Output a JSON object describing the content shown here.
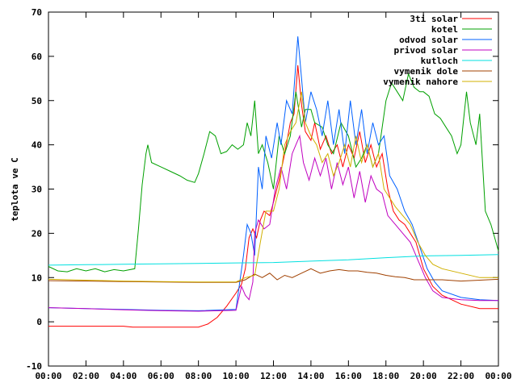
{
  "chart_data": {
    "type": "line",
    "ylabel": "teplota ve C",
    "xlim": [
      0,
      24
    ],
    "ylim": [
      -10,
      70
    ],
    "x_tick_labels": [
      "00:00",
      "02:00",
      "04:00",
      "06:00",
      "08:00",
      "10:00",
      "12:00",
      "14:00",
      "16:00",
      "18:00",
      "20:00",
      "22:00",
      "00:00"
    ],
    "y_tick_labels": [
      "-10",
      "0",
      "10",
      "20",
      "30",
      "40",
      "50",
      "60",
      "70"
    ],
    "x_tick_values": [
      0,
      2,
      4,
      6,
      8,
      10,
      12,
      14,
      16,
      18,
      20,
      22,
      24
    ],
    "y_tick_values": [
      -10,
      0,
      10,
      20,
      30,
      40,
      50,
      60,
      70
    ],
    "grid": false,
    "legend_position": "top-right",
    "series": [
      {
        "name": "3ti solar",
        "color": "#ff0000",
        "points": [
          [
            0,
            -1
          ],
          [
            2,
            -1
          ],
          [
            4,
            -1
          ],
          [
            4.5,
            -1.2
          ],
          [
            6,
            -1.2
          ],
          [
            8,
            -1.2
          ],
          [
            8.5,
            -0.5
          ],
          [
            9,
            1
          ],
          [
            9.5,
            3.5
          ],
          [
            10,
            6.5
          ],
          [
            10.3,
            8.5
          ],
          [
            10.5,
            12
          ],
          [
            10.7,
            19
          ],
          [
            10.9,
            21
          ],
          [
            11.1,
            19
          ],
          [
            11.3,
            23
          ],
          [
            11.5,
            25
          ],
          [
            11.8,
            24
          ],
          [
            12.0,
            27
          ],
          [
            12.3,
            32
          ],
          [
            12.6,
            38
          ],
          [
            12.9,
            45
          ],
          [
            13.1,
            47
          ],
          [
            13.3,
            58
          ],
          [
            13.5,
            49
          ],
          [
            13.7,
            43
          ],
          [
            14.0,
            41
          ],
          [
            14.2,
            45
          ],
          [
            14.5,
            39
          ],
          [
            14.8,
            42
          ],
          [
            15.1,
            38
          ],
          [
            15.4,
            40
          ],
          [
            15.7,
            35
          ],
          [
            16.0,
            40
          ],
          [
            16.3,
            37
          ],
          [
            16.6,
            43
          ],
          [
            16.9,
            36
          ],
          [
            17.2,
            40
          ],
          [
            17.5,
            35
          ],
          [
            17.8,
            38
          ],
          [
            18.1,
            30
          ],
          [
            18.4,
            25
          ],
          [
            18.7,
            23
          ],
          [
            19.0,
            22
          ],
          [
            19.3,
            20
          ],
          [
            19.6,
            18
          ],
          [
            20,
            12
          ],
          [
            20.5,
            8
          ],
          [
            21,
            6
          ],
          [
            22,
            4
          ],
          [
            23,
            3
          ],
          [
            24,
            3
          ]
        ]
      },
      {
        "name": "kotel",
        "color": "#00a000",
        "points": [
          [
            0,
            12.5
          ],
          [
            0.5,
            11.5
          ],
          [
            1,
            11.3
          ],
          [
            1.5,
            12
          ],
          [
            2,
            11.5
          ],
          [
            2.5,
            12
          ],
          [
            3,
            11.3
          ],
          [
            3.5,
            11.8
          ],
          [
            4,
            11.5
          ],
          [
            4.6,
            12
          ],
          [
            4.8,
            21
          ],
          [
            5.0,
            31
          ],
          [
            5.2,
            38
          ],
          [
            5.3,
            40
          ],
          [
            5.5,
            36
          ],
          [
            6.0,
            35
          ],
          [
            6.5,
            34
          ],
          [
            7.0,
            33
          ],
          [
            7.4,
            32
          ],
          [
            7.8,
            31.5
          ],
          [
            8.0,
            33.5
          ],
          [
            8.3,
            38
          ],
          [
            8.6,
            43
          ],
          [
            8.9,
            42
          ],
          [
            9.2,
            38
          ],
          [
            9.5,
            38.5
          ],
          [
            9.8,
            40
          ],
          [
            10.1,
            39
          ],
          [
            10.4,
            40
          ],
          [
            10.6,
            45
          ],
          [
            10.8,
            42
          ],
          [
            11.0,
            50
          ],
          [
            11.2,
            38
          ],
          [
            11.4,
            40
          ],
          [
            11.7,
            36
          ],
          [
            12.0,
            30
          ],
          [
            12.3,
            42
          ],
          [
            12.6,
            38
          ],
          [
            12.9,
            42
          ],
          [
            13.2,
            52
          ],
          [
            13.5,
            44
          ],
          [
            13.7,
            48
          ],
          [
            14.0,
            48
          ],
          [
            14.2,
            45
          ],
          [
            14.6,
            44
          ],
          [
            14.9,
            40
          ],
          [
            15.2,
            38
          ],
          [
            15.6,
            45
          ],
          [
            16.0,
            42
          ],
          [
            16.4,
            35
          ],
          [
            16.7,
            37
          ],
          [
            17.0,
            40
          ],
          [
            17.3,
            35
          ],
          [
            17.6,
            38
          ],
          [
            18.0,
            50
          ],
          [
            18.3,
            54
          ],
          [
            18.6,
            52
          ],
          [
            18.9,
            50
          ],
          [
            19.2,
            56
          ],
          [
            19.5,
            53
          ],
          [
            19.8,
            52
          ],
          [
            20.0,
            52
          ],
          [
            20.3,
            51
          ],
          [
            20.6,
            47
          ],
          [
            20.9,
            46
          ],
          [
            21.2,
            44
          ],
          [
            21.5,
            42
          ],
          [
            21.8,
            38
          ],
          [
            22.0,
            40
          ],
          [
            22.3,
            52
          ],
          [
            22.5,
            45
          ],
          [
            22.8,
            40
          ],
          [
            23.0,
            47
          ],
          [
            23.3,
            25
          ],
          [
            23.6,
            22
          ],
          [
            23.8,
            19
          ],
          [
            24,
            16
          ]
        ]
      },
      {
        "name": "odvod solar",
        "color": "#0060ff",
        "points": [
          [
            0,
            3.2
          ],
          [
            2,
            3
          ],
          [
            4,
            2.8
          ],
          [
            6,
            2.6
          ],
          [
            8,
            2.5
          ],
          [
            10,
            2.8
          ],
          [
            10.4,
            15
          ],
          [
            10.6,
            22
          ],
          [
            10.8,
            20
          ],
          [
            11.0,
            15
          ],
          [
            11.2,
            35
          ],
          [
            11.4,
            30
          ],
          [
            11.6,
            42
          ],
          [
            11.9,
            37
          ],
          [
            12.2,
            45
          ],
          [
            12.4,
            40
          ],
          [
            12.7,
            50
          ],
          [
            13.0,
            47
          ],
          [
            13.3,
            64.5
          ],
          [
            13.5,
            55
          ],
          [
            13.7,
            45
          ],
          [
            14.0,
            52
          ],
          [
            14.3,
            48
          ],
          [
            14.6,
            42
          ],
          [
            14.9,
            50
          ],
          [
            15.2,
            40
          ],
          [
            15.5,
            48
          ],
          [
            15.8,
            38
          ],
          [
            16.1,
            50
          ],
          [
            16.4,
            40
          ],
          [
            16.7,
            48
          ],
          [
            17.0,
            38
          ],
          [
            17.3,
            45
          ],
          [
            17.6,
            40
          ],
          [
            17.9,
            42
          ],
          [
            18.2,
            33
          ],
          [
            18.6,
            30
          ],
          [
            19.0,
            25
          ],
          [
            19.4,
            22
          ],
          [
            19.8,
            17
          ],
          [
            20.2,
            12
          ],
          [
            20.6,
            9
          ],
          [
            21,
            7
          ],
          [
            22,
            5.5
          ],
          [
            23,
            5
          ],
          [
            24,
            4.8
          ]
        ]
      },
      {
        "name": "privod solar",
        "color": "#c000c0",
        "points": [
          [
            0,
            3.2
          ],
          [
            2,
            3
          ],
          [
            4,
            2.7
          ],
          [
            6,
            2.5
          ],
          [
            8,
            2.4
          ],
          [
            10,
            2.6
          ],
          [
            10.3,
            8
          ],
          [
            10.5,
            6
          ],
          [
            10.7,
            5
          ],
          [
            10.9,
            9
          ],
          [
            11.0,
            20
          ],
          [
            11.2,
            23
          ],
          [
            11.5,
            21
          ],
          [
            11.8,
            22
          ],
          [
            12.1,
            30
          ],
          [
            12.4,
            35
          ],
          [
            12.7,
            30
          ],
          [
            13.0,
            38
          ],
          [
            13.2,
            40
          ],
          [
            13.4,
            42
          ],
          [
            13.6,
            36
          ],
          [
            13.9,
            32
          ],
          [
            14.2,
            37
          ],
          [
            14.5,
            33
          ],
          [
            14.8,
            37
          ],
          [
            15.1,
            30
          ],
          [
            15.4,
            36
          ],
          [
            15.7,
            31
          ],
          [
            16.0,
            35
          ],
          [
            16.3,
            28
          ],
          [
            16.6,
            34
          ],
          [
            16.9,
            27
          ],
          [
            17.2,
            33
          ],
          [
            17.5,
            30
          ],
          [
            17.8,
            29
          ],
          [
            18.1,
            24
          ],
          [
            18.5,
            22
          ],
          [
            18.9,
            20
          ],
          [
            19.3,
            18
          ],
          [
            19.7,
            14
          ],
          [
            20.1,
            10
          ],
          [
            20.5,
            7
          ],
          [
            21,
            5.5
          ],
          [
            22,
            5
          ],
          [
            23,
            4.8
          ],
          [
            24,
            4.8
          ]
        ]
      },
      {
        "name": "kutloch",
        "color": "#00e0e0",
        "points": [
          [
            0,
            12.8
          ],
          [
            2,
            12.9
          ],
          [
            4,
            13
          ],
          [
            6,
            13.1
          ],
          [
            8,
            13.2
          ],
          [
            10,
            13.3
          ],
          [
            12,
            13.4
          ],
          [
            14,
            13.7
          ],
          [
            16,
            14.0
          ],
          [
            18,
            14.5
          ],
          [
            20,
            14.9
          ],
          [
            22,
            15.0
          ],
          [
            24,
            15.2
          ]
        ]
      },
      {
        "name": "vymenik dole",
        "color": "#a04000",
        "points": [
          [
            0,
            9.3
          ],
          [
            2,
            9.2
          ],
          [
            4,
            9.1
          ],
          [
            6,
            9
          ],
          [
            8,
            8.9
          ],
          [
            10,
            8.9
          ],
          [
            10.5,
            9.5
          ],
          [
            11.0,
            10.8
          ],
          [
            11.4,
            10
          ],
          [
            11.8,
            11
          ],
          [
            12.2,
            9.5
          ],
          [
            12.6,
            10.5
          ],
          [
            13.0,
            10
          ],
          [
            13.5,
            11
          ],
          [
            14,
            12
          ],
          [
            14.5,
            11
          ],
          [
            15,
            11.5
          ],
          [
            15.5,
            11.8
          ],
          [
            16,
            11.5
          ],
          [
            16.5,
            11.5
          ],
          [
            17,
            11.2
          ],
          [
            17.5,
            11
          ],
          [
            18,
            10.5
          ],
          [
            18.5,
            10.2
          ],
          [
            19,
            10
          ],
          [
            19.5,
            9.5
          ],
          [
            20,
            9.5
          ],
          [
            21,
            9.5
          ],
          [
            22,
            9.2
          ],
          [
            23,
            9.4
          ],
          [
            24,
            9.6
          ]
        ]
      },
      {
        "name": "vymenik nahore",
        "color": "#d0b000",
        "points": [
          [
            0,
            9.6
          ],
          [
            2,
            9.4
          ],
          [
            4,
            9.2
          ],
          [
            6,
            9.1
          ],
          [
            8,
            9
          ],
          [
            10,
            9
          ],
          [
            10.5,
            10
          ],
          [
            11.0,
            10.5
          ],
          [
            11.3,
            18
          ],
          [
            11.6,
            25
          ],
          [
            12.0,
            25
          ],
          [
            12.3,
            30
          ],
          [
            12.6,
            40
          ],
          [
            12.9,
            43
          ],
          [
            13.2,
            45
          ],
          [
            13.5,
            52
          ],
          [
            13.7,
            45
          ],
          [
            14.0,
            42
          ],
          [
            14.3,
            40
          ],
          [
            14.6,
            36
          ],
          [
            14.9,
            38
          ],
          [
            15.2,
            33
          ],
          [
            15.5,
            36
          ],
          [
            15.8,
            40
          ],
          [
            16.1,
            35
          ],
          [
            16.4,
            42
          ],
          [
            16.7,
            36
          ],
          [
            17.0,
            40
          ],
          [
            17.3,
            35
          ],
          [
            17.6,
            38
          ],
          [
            17.9,
            30
          ],
          [
            18.2,
            28
          ],
          [
            18.5,
            26
          ],
          [
            18.9,
            24
          ],
          [
            19.3,
            22
          ],
          [
            19.7,
            18
          ],
          [
            20.1,
            15
          ],
          [
            20.5,
            13
          ],
          [
            21,
            12
          ],
          [
            22,
            11
          ],
          [
            23,
            10
          ],
          [
            24,
            10
          ]
        ]
      }
    ]
  }
}
